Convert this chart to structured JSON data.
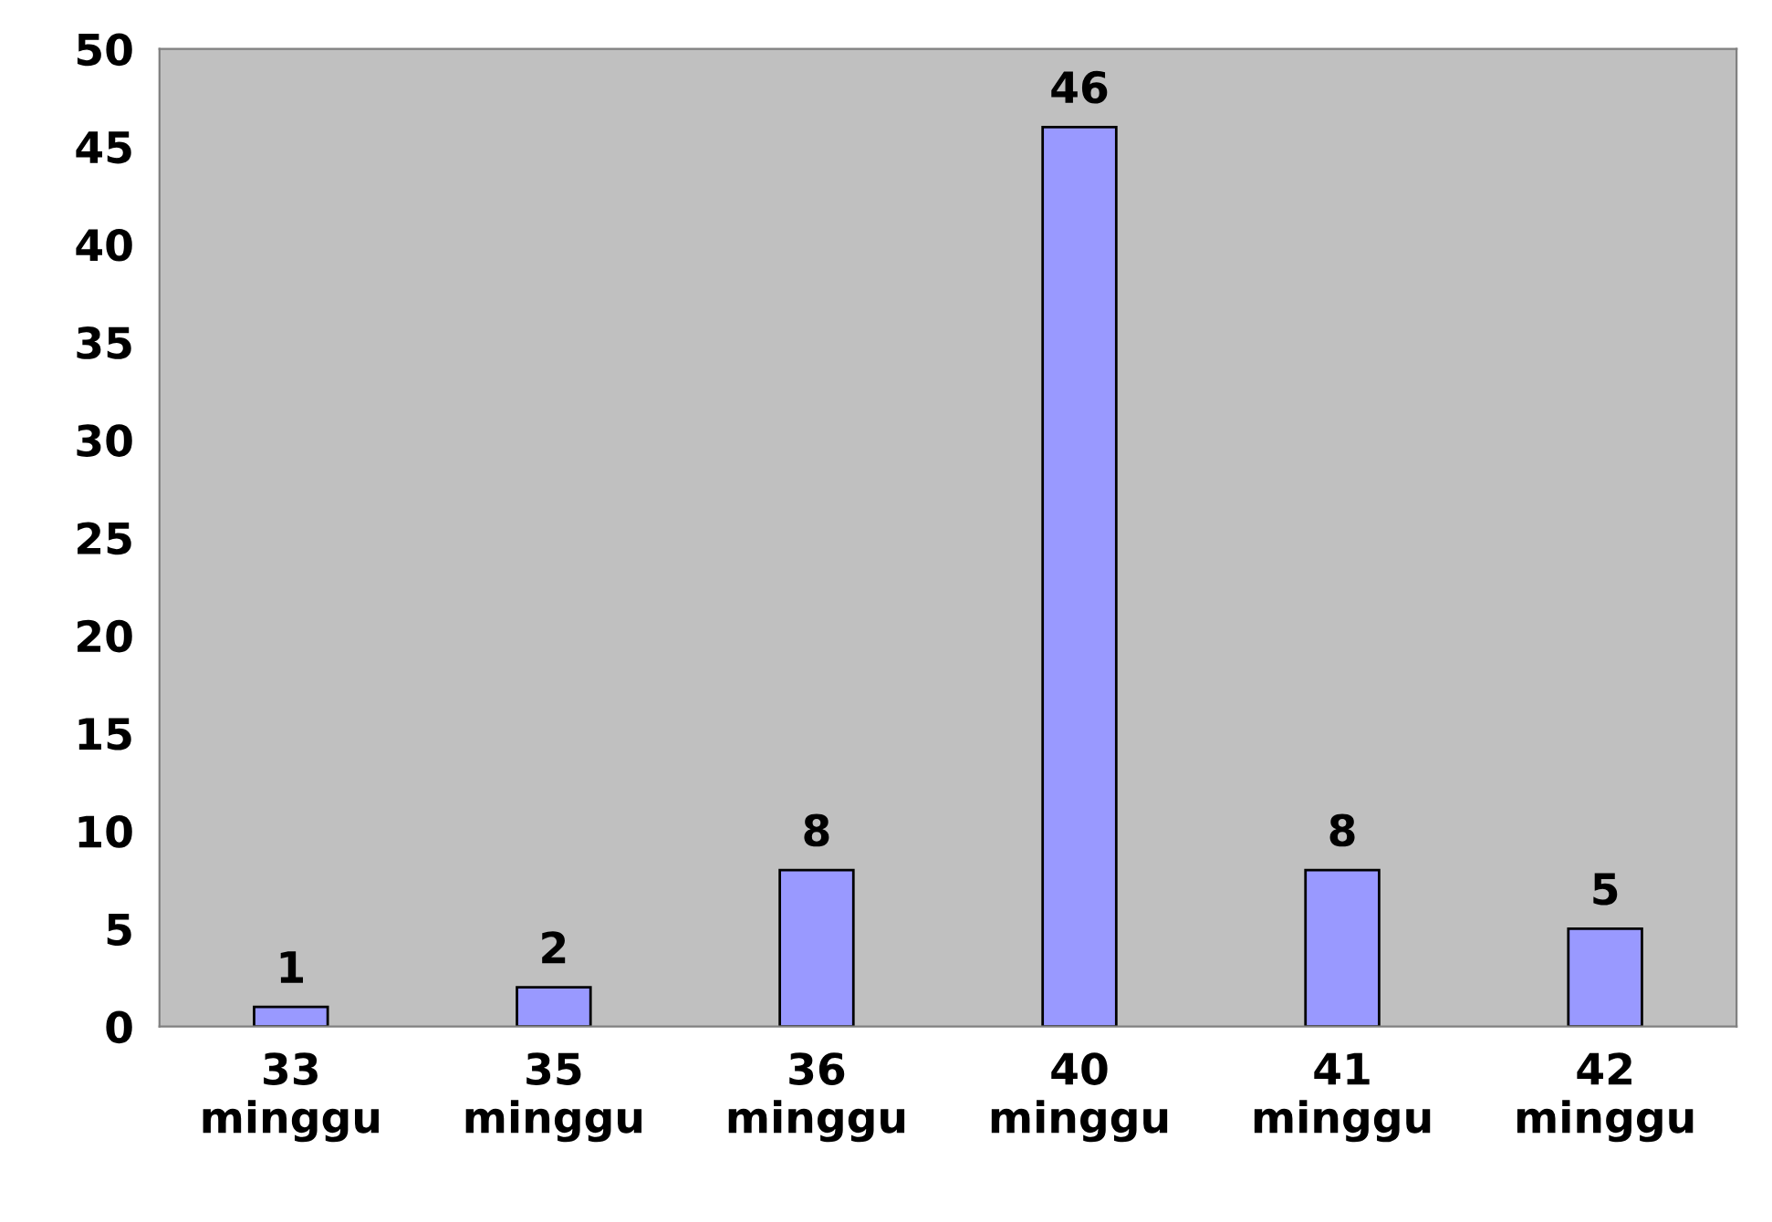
{
  "chart_data": {
    "type": "bar",
    "categories": [
      "33\nminggu",
      "35\nminggu",
      "36\nminggu",
      "40\nminggu",
      "41\nminggu",
      "42\nminggu"
    ],
    "values": [
      1,
      2,
      8,
      46,
      8,
      5
    ],
    "color": "#9999ff",
    "ylim": [
      0,
      50
    ],
    "yticks": [
      0,
      5,
      10,
      15,
      20,
      25,
      30,
      35,
      40,
      45,
      50
    ],
    "data_labels": true,
    "grid": false,
    "legend": false
  }
}
